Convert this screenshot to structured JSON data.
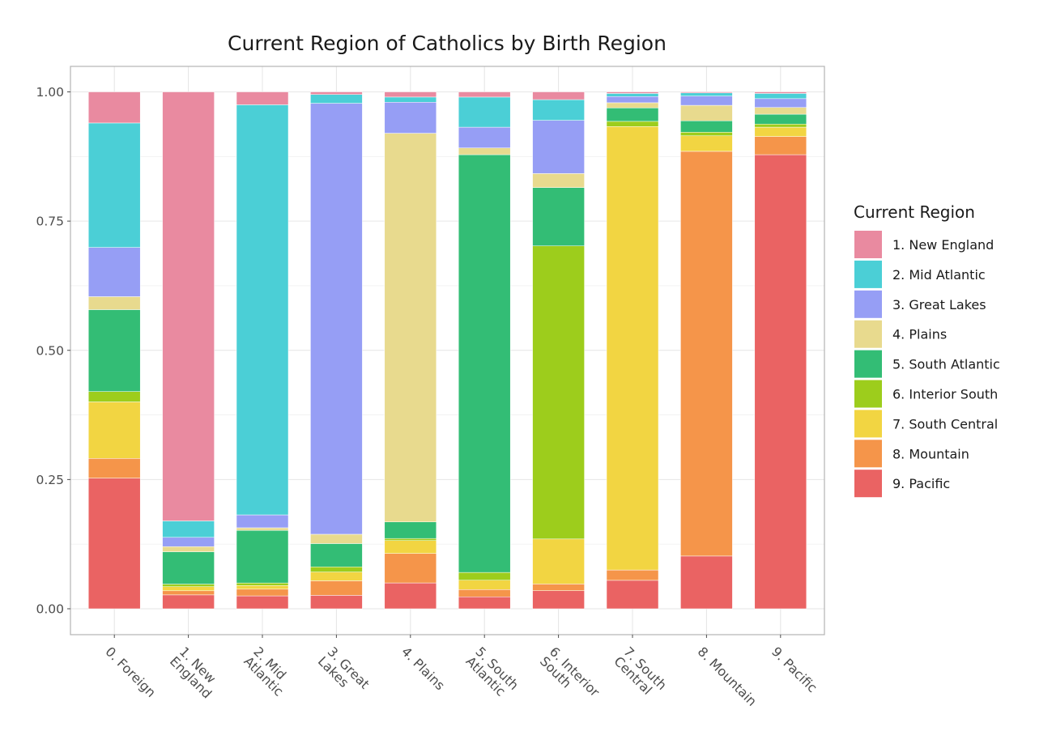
{
  "chart_data": {
    "type": "bar",
    "stacked": true,
    "title": "Current Region of Catholics by Birth Region",
    "xlabel": "",
    "ylabel": "",
    "ylim": [
      0,
      1
    ],
    "yticks": [
      "0.00",
      "0.25",
      "0.50",
      "0.75",
      "1.00"
    ],
    "grid": true,
    "legend_title": "Current Region",
    "legend_position": "right",
    "categories": [
      "0. Foreign",
      "1. New England",
      "2. Mid Atlantic",
      "3. Great Lakes",
      "4. Plains",
      "5. South Atlantic",
      "6. Interior South",
      "7. South Central",
      "8. Mountain",
      "9. Pacific"
    ],
    "series": [
      {
        "name": "1. New England",
        "color": "#E98AA0",
        "values": [
          0.06,
          0.835,
          0.025,
          0.005,
          0.01,
          0.01,
          0.015,
          0.003,
          0.002,
          0.003
        ]
      },
      {
        "name": "2. Mid Atlantic",
        "color": "#4BCFD6",
        "values": [
          0.24,
          0.032,
          0.795,
          0.017,
          0.01,
          0.058,
          0.04,
          0.006,
          0.006,
          0.01
        ]
      },
      {
        "name": "3. Great Lakes",
        "color": "#969EF5",
        "values": [
          0.095,
          0.018,
          0.025,
          0.833,
          0.06,
          0.04,
          0.103,
          0.012,
          0.018,
          0.017
        ]
      },
      {
        "name": "4. Plains",
        "color": "#E8DA8E",
        "values": [
          0.025,
          0.01,
          0.005,
          0.018,
          0.752,
          0.013,
          0.027,
          0.01,
          0.03,
          0.013
        ]
      },
      {
        "name": "5. South Atlantic",
        "color": "#33BD75",
        "values": [
          0.158,
          0.063,
          0.102,
          0.045,
          0.032,
          0.805,
          0.113,
          0.026,
          0.022,
          0.019
        ]
      },
      {
        "name": "6. Interior South",
        "color": "#9DCD1C",
        "values": [
          0.02,
          0.005,
          0.005,
          0.01,
          0.004,
          0.015,
          0.567,
          0.01,
          0.007,
          0.006
        ]
      },
      {
        "name": "7. South Central",
        "color": "#F2D542",
        "values": [
          0.109,
          0.008,
          0.007,
          0.017,
          0.025,
          0.018,
          0.087,
          0.858,
          0.03,
          0.018
        ]
      },
      {
        "name": "8. Mountain",
        "color": "#F5954A",
        "values": [
          0.038,
          0.008,
          0.013,
          0.028,
          0.057,
          0.014,
          0.013,
          0.02,
          0.783,
          0.035
        ]
      },
      {
        "name": "9. Pacific",
        "color": "#EA6363",
        "values": [
          0.252,
          0.027,
          0.025,
          0.026,
          0.05,
          0.023,
          0.035,
          0.055,
          0.102,
          0.875
        ]
      }
    ]
  }
}
